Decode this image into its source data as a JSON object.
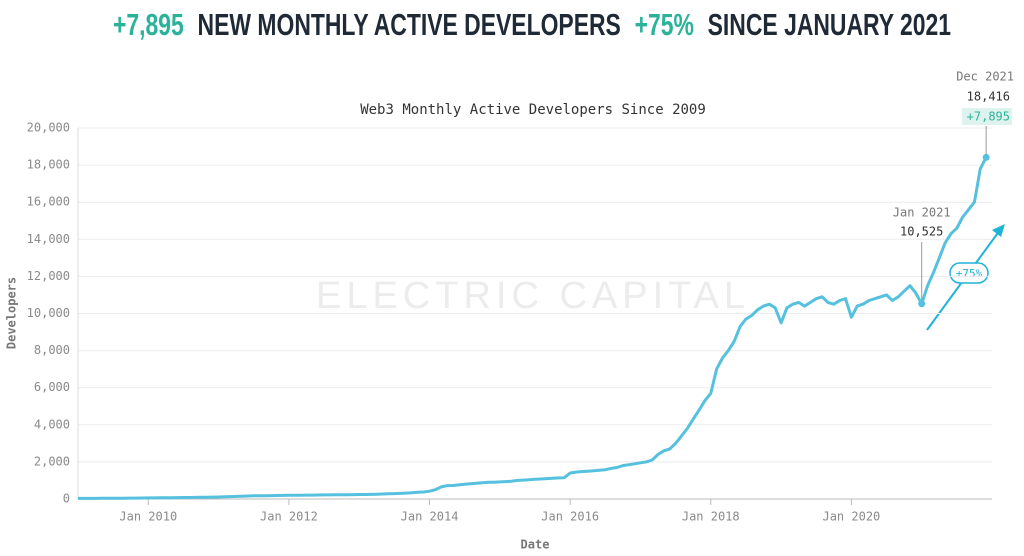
{
  "chart_data": {
    "type": "line",
    "headline": [
      "+7,895",
      "NEW MONTHLY ACTIVE DEVELOPERS",
      "+75%",
      "SINCE JANUARY 2021"
    ],
    "title": "Web3 Monthly Active Developers Since 2009",
    "watermark": "ELECTRIC CAPITAL",
    "x_label": "Date",
    "y_label": "Developers",
    "color": "#55c1df",
    "accent": "#2bb39a",
    "grid": true,
    "xlim": [
      "2009-01",
      "2022-01"
    ],
    "xticks": [
      {
        "value": "2010-01",
        "label": "Jan 2010"
      },
      {
        "value": "2012-01",
        "label": "Jan 2012"
      },
      {
        "value": "2014-01",
        "label": "Jan 2014"
      },
      {
        "value": "2016-01",
        "label": "Jan 2016"
      },
      {
        "value": "2018-01",
        "label": "Jan 2018"
      },
      {
        "value": "2020-01",
        "label": "Jan 2020"
      }
    ],
    "ylim": [
      0,
      20000
    ],
    "yticks": [
      0,
      {
        "value": 2000,
        "label": "2,000"
      },
      {
        "value": 4000,
        "label": "4,000"
      },
      {
        "value": 6000,
        "label": "6,000"
      },
      {
        "value": 8000,
        "label": "8,000"
      },
      {
        "value": 10000,
        "label": "10,000"
      },
      {
        "value": 12000,
        "label": "12,000"
      },
      {
        "value": 14000,
        "label": "14,000"
      },
      {
        "value": 16000,
        "label": "16,000"
      },
      {
        "value": 18000,
        "label": "18,000"
      },
      {
        "value": 20000,
        "label": "20,000"
      }
    ],
    "x": [
      "2009-01",
      "2009-02",
      "2009-03",
      "2009-04",
      "2009-05",
      "2009-06",
      "2009-07",
      "2009-08",
      "2009-09",
      "2009-10",
      "2009-11",
      "2009-12",
      "2010-01",
      "2010-02",
      "2010-03",
      "2010-04",
      "2010-05",
      "2010-06",
      "2010-07",
      "2010-08",
      "2010-09",
      "2010-10",
      "2010-11",
      "2010-12",
      "2011-01",
      "2011-02",
      "2011-03",
      "2011-04",
      "2011-05",
      "2011-06",
      "2011-07",
      "2011-08",
      "2011-09",
      "2011-10",
      "2011-11",
      "2011-12",
      "2012-01",
      "2012-02",
      "2012-03",
      "2012-04",
      "2012-05",
      "2012-06",
      "2012-07",
      "2012-08",
      "2012-09",
      "2012-10",
      "2012-11",
      "2012-12",
      "2013-01",
      "2013-02",
      "2013-03",
      "2013-04",
      "2013-05",
      "2013-06",
      "2013-07",
      "2013-08",
      "2013-09",
      "2013-10",
      "2013-11",
      "2013-12",
      "2014-01",
      "2014-02",
      "2014-03",
      "2014-04",
      "2014-05",
      "2014-06",
      "2014-07",
      "2014-08",
      "2014-09",
      "2014-10",
      "2014-11",
      "2014-12",
      "2015-01",
      "2015-02",
      "2015-03",
      "2015-04",
      "2015-05",
      "2015-06",
      "2015-07",
      "2015-08",
      "2015-09",
      "2015-10",
      "2015-11",
      "2015-12",
      "2016-01",
      "2016-02",
      "2016-03",
      "2016-04",
      "2016-05",
      "2016-06",
      "2016-07",
      "2016-08",
      "2016-09",
      "2016-10",
      "2016-11",
      "2016-12",
      "2017-01",
      "2017-02",
      "2017-03",
      "2017-04",
      "2017-05",
      "2017-06",
      "2017-07",
      "2017-08",
      "2017-09",
      "2017-10",
      "2017-11",
      "2017-12",
      "2018-01",
      "2018-02",
      "2018-03",
      "2018-04",
      "2018-05",
      "2018-06",
      "2018-07",
      "2018-08",
      "2018-09",
      "2018-10",
      "2018-11",
      "2018-12",
      "2019-01",
      "2019-02",
      "2019-03",
      "2019-04",
      "2019-05",
      "2019-06",
      "2019-07",
      "2019-08",
      "2019-09",
      "2019-10",
      "2019-11",
      "2019-12",
      "2020-01",
      "2020-02",
      "2020-03",
      "2020-04",
      "2020-05",
      "2020-06",
      "2020-07",
      "2020-08",
      "2020-09",
      "2020-10",
      "2020-11",
      "2020-12",
      "2021-01",
      "2021-02",
      "2021-03",
      "2021-04",
      "2021-05",
      "2021-06",
      "2021-07",
      "2021-08",
      "2021-09",
      "2021-10",
      "2021-11",
      "2021-12"
    ],
    "values": [
      30,
      30,
      35,
      35,
      40,
      40,
      40,
      45,
      45,
      50,
      50,
      55,
      60,
      60,
      65,
      70,
      70,
      75,
      80,
      80,
      85,
      90,
      95,
      100,
      110,
      120,
      130,
      140,
      150,
      160,
      170,
      175,
      180,
      185,
      190,
      195,
      200,
      200,
      205,
      210,
      210,
      215,
      220,
      220,
      225,
      230,
      230,
      235,
      240,
      245,
      250,
      260,
      270,
      280,
      290,
      300,
      320,
      340,
      360,
      380,
      420,
      500,
      650,
      720,
      730,
      760,
      790,
      820,
      850,
      880,
      900,
      900,
      920,
      940,
      960,
      1000,
      1020,
      1040,
      1060,
      1080,
      1100,
      1120,
      1140,
      1150,
      1400,
      1450,
      1480,
      1500,
      1520,
      1550,
      1580,
      1650,
      1700,
      1800,
      1850,
      1900,
      1950,
      2000,
      2100,
      2400,
      2600,
      2700,
      3000,
      3400,
      3800,
      4300,
      4800,
      5300,
      5700,
      7000,
      7600,
      8000,
      8500,
      9300,
      9700,
      9900,
      10200,
      10400,
      10500,
      10300,
      9500,
      10300,
      10500,
      10600,
      10400,
      10600,
      10800,
      10900,
      10600,
      10500,
      10700,
      10800,
      9800,
      10400,
      10500,
      10700,
      10800,
      10900,
      11000,
      10700,
      10900,
      11200,
      11500,
      11100,
      10525,
      11500,
      12200,
      13000,
      13800,
      14300,
      14600,
      15200,
      15600,
      16000,
      17800,
      18416
    ],
    "annotations": {
      "peak": {
        "date": "Dec 2021",
        "value": "18,416",
        "change": "+7,895"
      },
      "start": {
        "date": "Jan 2021",
        "value": "10,525"
      },
      "growth": "+75%"
    }
  }
}
